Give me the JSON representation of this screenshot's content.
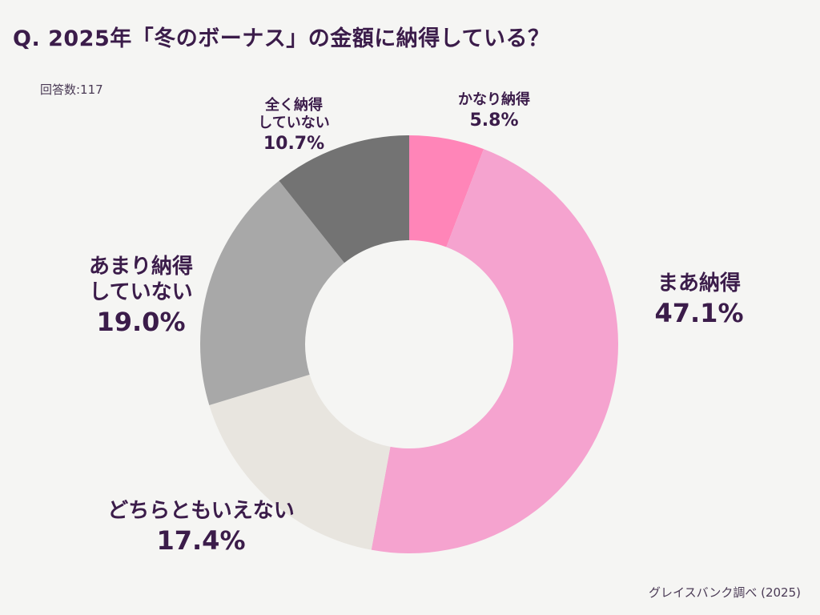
{
  "title": "Q. 2025年「冬のボーナス」の金額に納得している？",
  "respondents": "回答数:117",
  "source": "グレイスバンク調べ (2025)",
  "chart_data": {
    "type": "pie",
    "donut": true,
    "start": "top, clockwise",
    "slices": [
      {
        "label": "かなり納得",
        "value": 5.8,
        "pct_label": "5.8%",
        "color": "#ff85b8"
      },
      {
        "label": "まあ納得",
        "value": 47.1,
        "pct_label": "47.1%",
        "color": "#f5a3cf"
      },
      {
        "label": "どちらともいえない",
        "value": 17.4,
        "pct_label": "17.4%",
        "color": "#e8e5df"
      },
      {
        "label": "あまり納得\nしていない",
        "value": 19.0,
        "pct_label": "19.0%",
        "color": "#a8a8a8"
      },
      {
        "label": "全く納得\nしていない",
        "value": 10.7,
        "pct_label": "10.7%",
        "color": "#737373"
      }
    ],
    "text_color": "#3b1c4a"
  }
}
